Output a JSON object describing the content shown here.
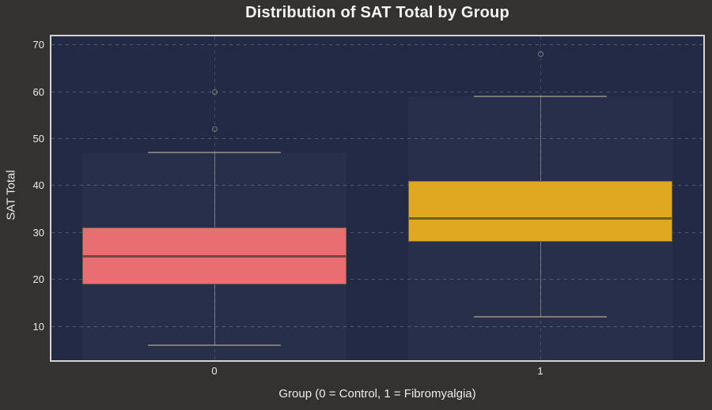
{
  "chart_data": {
    "type": "box",
    "title": "Distribution of SAT Total by Group",
    "xlabel": "Group (0 = Control, 1 = Fibromyalgia)",
    "ylabel": "SAT Total",
    "categories": [
      "0",
      "1"
    ],
    "yticks": [
      10,
      20,
      30,
      40,
      50,
      60,
      70
    ],
    "ylim": [
      2.8,
      71.8
    ],
    "grid": "dashed horizontal at each ytick, dashed vertical at each category",
    "legend": "none",
    "series": [
      {
        "name": "Control (0)",
        "tick_label": "0",
        "color": "#e96e72",
        "whisker_low": 6,
        "q1": 19,
        "median": 25,
        "q3": 31,
        "whisker_high": 47,
        "outliers": [
          52,
          60
        ]
      },
      {
        "name": "Fibromyalgia (1)",
        "tick_label": "1",
        "color": "#dfa81f",
        "whisker_low": 12,
        "q1": 28,
        "median": 33,
        "q3": 41,
        "whisker_high": 59,
        "outliers": [
          68
        ]
      }
    ]
  },
  "colors": {
    "outer_background": "#333231",
    "plot_background": "#232a46",
    "plot_border": "#d4d4d4",
    "text": "#ececec",
    "group0_fill": "#e96e72",
    "group1_fill": "#dfa81f"
  }
}
